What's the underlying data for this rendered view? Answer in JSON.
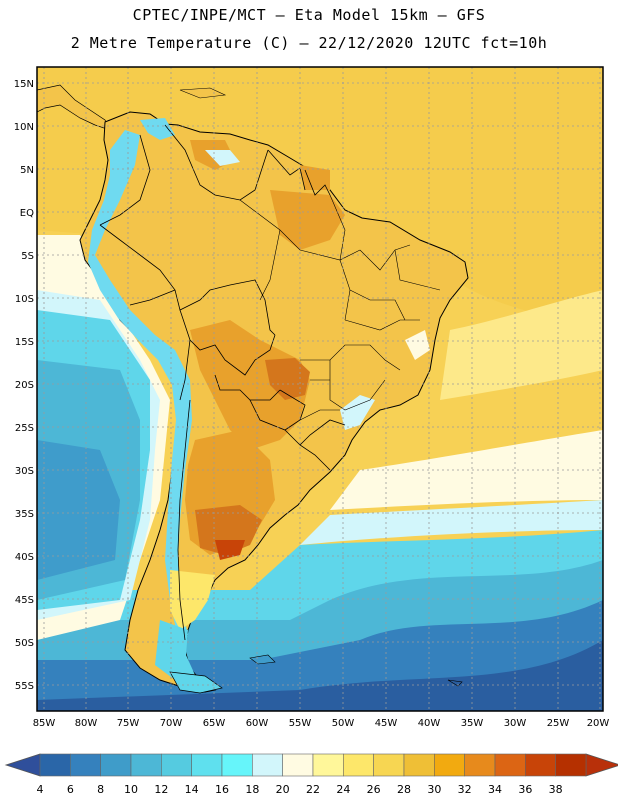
{
  "header": {
    "title_line1": "CPTEC/INPE/MCT –  Eta Model 15km – GFS",
    "title_line2": "2 Metre Temperature (C) – 22/12/2020 12UTC fct=10h"
  },
  "map": {
    "lat_labels": [
      "15N",
      "10N",
      "5N",
      "EQ",
      "5S",
      "10S",
      "15S",
      "20S",
      "25S",
      "30S",
      "35S",
      "40S",
      "45S",
      "50S",
      "55S"
    ],
    "lon_labels": [
      "85W",
      "80W",
      "75W",
      "70W",
      "65W",
      "60W",
      "55W",
      "50W",
      "45W",
      "40W",
      "35W",
      "30W",
      "25W",
      "20W"
    ]
  },
  "colorbar": {
    "labels": [
      "4",
      "6",
      "8",
      "10",
      "12",
      "14",
      "16",
      "18",
      "20",
      "22",
      "24",
      "26",
      "28",
      "30",
      "32",
      "34",
      "36",
      "38"
    ],
    "colors": [
      "#2a66a8",
      "#3581bd",
      "#3f9cc9",
      "#4db7d6",
      "#55cbe0",
      "#5fe0ee",
      "#66f5fa",
      "#d2f6fb",
      "#fffbe2",
      "#fff79a",
      "#fde76a",
      "#f7d652",
      "#efbf36",
      "#f2aa10",
      "#e78a1c",
      "#dc6514",
      "#c84408",
      "#b53000"
    ],
    "low_color": "#2f4f9b",
    "high_color": "#b8300a"
  },
  "palette": {
    "ocean_cold": "#2a5ea0",
    "ocean_cool": "#3f9ccb",
    "ocean_mild": "#5fd6ea",
    "ocean_warm": "#fde06a",
    "ocean_tropical": "#f7d155",
    "land_base": "#f3c44a",
    "land_hot": "#e8a12c",
    "land_very_hot": "#d4761c",
    "andes": "#6fdaf0"
  }
}
